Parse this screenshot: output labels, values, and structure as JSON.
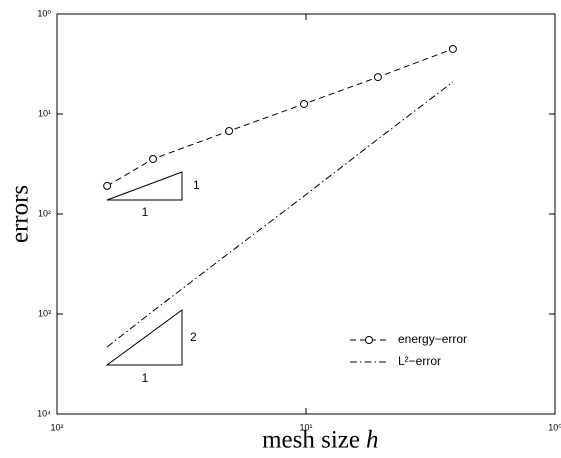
{
  "chart_data": {
    "type": "line",
    "ylabel": "errors",
    "xlabel": "mesh size",
    "xlabel_var": "h",
    "xscale": "log",
    "yscale": "log",
    "xlim": [
      0.01,
      1
    ],
    "ylim": [
      0.0001,
      1
    ],
    "xticks": [
      {
        "value": 0.01,
        "label": "10²"
      },
      {
        "value": 0.1,
        "label": "10¹"
      },
      {
        "value": 1,
        "label": "10⁰"
      }
    ],
    "yticks": [
      {
        "value": 1,
        "label": "10⁰"
      },
      {
        "value": 0.1,
        "label": "10¹"
      },
      {
        "value": 0.01,
        "label": "10²"
      },
      {
        "value": 0.001,
        "label": "10³"
      },
      {
        "value": 0.0001,
        "label": "10⁴"
      }
    ],
    "legend": "lower right",
    "series": [
      {
        "name": "energy−error",
        "color": "#000000",
        "linestyle": "dashed",
        "marker": "o",
        "x": [
          0.0159,
          0.0243,
          0.0491,
          0.0982,
          0.1945,
          0.389
        ],
        "values": [
          0.0191,
          0.0355,
          0.0676,
          0.126,
          0.234,
          0.447
        ]
      },
      {
        "name": "L²−error",
        "color": "#000000",
        "linestyle": "dashdot",
        "marker": "none",
        "x": [
          0.0159,
          0.0243,
          0.0491,
          0.0982,
          0.1945,
          0.389
        ],
        "values": [
          0.000468,
          0.00107,
          0.00407,
          0.0151,
          0.0562,
          0.209
        ]
      }
    ],
    "annotations": [
      "1",
      "1",
      "2",
      "1"
    ]
  }
}
